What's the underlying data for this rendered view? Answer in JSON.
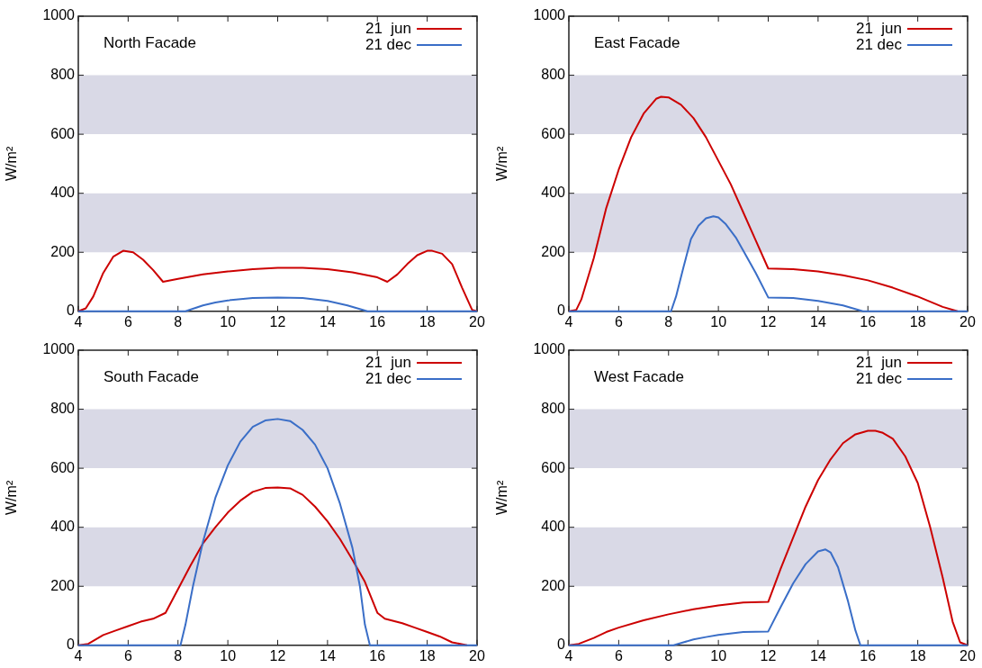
{
  "chart_data": [
    {
      "type": "line",
      "title": "North Facade",
      "ylabel": "W/m²",
      "xlim": [
        4,
        20
      ],
      "xticks": [
        4,
        6,
        8,
        10,
        12,
        14,
        16,
        18,
        20
      ],
      "ylim": [
        0,
        1000
      ],
      "yticks": [
        0,
        200,
        400,
        600,
        800,
        1000
      ],
      "grid": false,
      "legend": "top right",
      "marker": "none",
      "line_style": "solid",
      "bands": [
        {
          "axis": "y",
          "from": 200,
          "to": 400,
          "color": "#d9d9e6"
        },
        {
          "axis": "y",
          "from": 600,
          "to": 800,
          "color": "#d9d9e6"
        }
      ],
      "series": [
        {
          "name": "21  jun",
          "color": "#cc0000",
          "x": [
            4,
            4.3,
            4.6,
            5,
            5.4,
            5.8,
            6.2,
            6.6,
            7,
            7.4,
            8,
            9,
            10,
            11,
            12,
            13,
            14,
            15,
            16,
            16.4,
            16.8,
            17.2,
            17.6,
            18,
            18.2,
            18.6,
            19,
            19.4,
            19.8,
            20
          ],
          "values": [
            0,
            10,
            50,
            130,
            185,
            205,
            200,
            175,
            140,
            100,
            110,
            125,
            135,
            143,
            147,
            147,
            143,
            132,
            115,
            100,
            125,
            160,
            190,
            205,
            205,
            195,
            160,
            80,
            5,
            0
          ]
        },
        {
          "name": "21 dec",
          "color": "#3a6ec7",
          "x": [
            4,
            8.3,
            9,
            9.5,
            10,
            11,
            12,
            13,
            14,
            14.8,
            15.6,
            20
          ],
          "values": [
            0,
            0,
            20,
            30,
            37,
            45,
            47,
            45,
            35,
            20,
            0,
            0
          ]
        }
      ]
    },
    {
      "type": "line",
      "title": "East Facade",
      "ylabel": "W/m²",
      "xlim": [
        4,
        20
      ],
      "xticks": [
        4,
        6,
        8,
        10,
        12,
        14,
        16,
        18,
        20
      ],
      "ylim": [
        0,
        1000
      ],
      "yticks": [
        0,
        200,
        400,
        600,
        800,
        1000
      ],
      "grid": false,
      "legend": "top right",
      "marker": "none",
      "line_style": "solid",
      "bands": [
        {
          "axis": "y",
          "from": 200,
          "to": 400,
          "color": "#d9d9e6"
        },
        {
          "axis": "y",
          "from": 600,
          "to": 800,
          "color": "#d9d9e6"
        }
      ],
      "series": [
        {
          "name": "21  jun",
          "color": "#cc0000",
          "x": [
            4,
            4.3,
            4.5,
            5,
            5.5,
            6,
            6.5,
            7,
            7.5,
            7.7,
            8,
            8.5,
            9,
            9.5,
            10,
            10.5,
            11,
            11.5,
            12,
            13,
            14,
            15,
            16,
            17,
            18,
            19,
            19.6
          ],
          "values": [
            0,
            5,
            40,
            180,
            350,
            480,
            590,
            670,
            720,
            727,
            725,
            700,
            655,
            590,
            510,
            430,
            335,
            240,
            145,
            143,
            135,
            122,
            105,
            80,
            50,
            15,
            0
          ]
        },
        {
          "name": "21 dec",
          "color": "#3a6ec7",
          "x": [
            4,
            8.1,
            8.3,
            8.6,
            8.9,
            9.2,
            9.5,
            9.8,
            10,
            10.3,
            10.7,
            11,
            11.5,
            12,
            13,
            14,
            15,
            15.8,
            20
          ],
          "values": [
            0,
            0,
            50,
            150,
            245,
            290,
            315,
            322,
            318,
            295,
            250,
            205,
            130,
            47,
            45,
            35,
            20,
            0,
            0
          ]
        }
      ]
    },
    {
      "type": "line",
      "title": "South Facade",
      "ylabel": "W/m²",
      "xlim": [
        4,
        20
      ],
      "xticks": [
        4,
        6,
        8,
        10,
        12,
        14,
        16,
        18,
        20
      ],
      "ylim": [
        0,
        1000
      ],
      "yticks": [
        0,
        200,
        400,
        600,
        800,
        1000
      ],
      "grid": false,
      "legend": "top right",
      "marker": "none",
      "line_style": "solid",
      "bands": [
        {
          "axis": "y",
          "from": 200,
          "to": 400,
          "color": "#d9d9e6"
        },
        {
          "axis": "y",
          "from": 600,
          "to": 800,
          "color": "#d9d9e6"
        }
      ],
      "series": [
        {
          "name": "21  jun",
          "color": "#cc0000",
          "x": [
            4,
            4.4,
            5,
            5.5,
            6,
            6.5,
            7,
            7.5,
            8,
            8.5,
            9,
            9.5,
            10,
            10.5,
            11,
            11.5,
            12,
            12.5,
            13,
            13.5,
            14,
            14.5,
            15,
            15.5,
            16,
            16.3,
            17,
            17.5,
            18,
            18.5,
            19,
            19.6
          ],
          "values": [
            0,
            5,
            35,
            50,
            65,
            80,
            90,
            110,
            190,
            270,
            345,
            400,
            450,
            490,
            520,
            533,
            535,
            532,
            510,
            470,
            420,
            360,
            290,
            215,
            110,
            90,
            75,
            60,
            45,
            30,
            10,
            0
          ]
        },
        {
          "name": "21 dec",
          "color": "#3a6ec7",
          "x": [
            4,
            8.1,
            8.3,
            8.6,
            9,
            9.5,
            10,
            10.5,
            11,
            11.5,
            12,
            12.5,
            13,
            13.5,
            14,
            14.5,
            15,
            15.3,
            15.5,
            15.7,
            20
          ],
          "values": [
            0,
            0,
            70,
            200,
            350,
            500,
            610,
            690,
            740,
            762,
            767,
            760,
            730,
            680,
            600,
            480,
            330,
            200,
            70,
            0,
            0
          ]
        }
      ]
    },
    {
      "type": "line",
      "title": "West Facade",
      "ylabel": "W/m²",
      "xlim": [
        4,
        20
      ],
      "xticks": [
        4,
        6,
        8,
        10,
        12,
        14,
        16,
        18,
        20
      ],
      "ylim": [
        0,
        1000
      ],
      "yticks": [
        0,
        200,
        400,
        600,
        800,
        1000
      ],
      "grid": false,
      "legend": "top right",
      "marker": "none",
      "line_style": "solid",
      "bands": [
        {
          "axis": "y",
          "from": 200,
          "to": 400,
          "color": "#d9d9e6"
        },
        {
          "axis": "y",
          "from": 600,
          "to": 800,
          "color": "#d9d9e6"
        }
      ],
      "series": [
        {
          "name": "21  jun",
          "color": "#cc0000",
          "x": [
            4,
            4.4,
            5,
            5.5,
            6,
            7,
            8,
            9,
            10,
            11,
            12,
            12.5,
            13,
            13.5,
            14,
            14.5,
            15,
            15.5,
            16,
            16.3,
            16.6,
            17,
            17.5,
            18,
            18.5,
            19,
            19.4,
            19.7,
            20
          ],
          "values": [
            0,
            5,
            25,
            45,
            60,
            85,
            105,
            122,
            135,
            145,
            147,
            260,
            365,
            470,
            560,
            630,
            685,
            715,
            727,
            727,
            720,
            700,
            640,
            550,
            400,
            230,
            80,
            10,
            0
          ]
        },
        {
          "name": "21 dec",
          "color": "#3a6ec7",
          "x": [
            4,
            8.2,
            9,
            9.5,
            10,
            11,
            12,
            12.5,
            13,
            13.5,
            14,
            14.3,
            14.5,
            14.8,
            15.2,
            15.5,
            15.7,
            20
          ],
          "values": [
            0,
            0,
            20,
            28,
            35,
            45,
            47,
            130,
            210,
            275,
            318,
            325,
            315,
            265,
            150,
            50,
            0,
            0
          ]
        }
      ]
    }
  ]
}
